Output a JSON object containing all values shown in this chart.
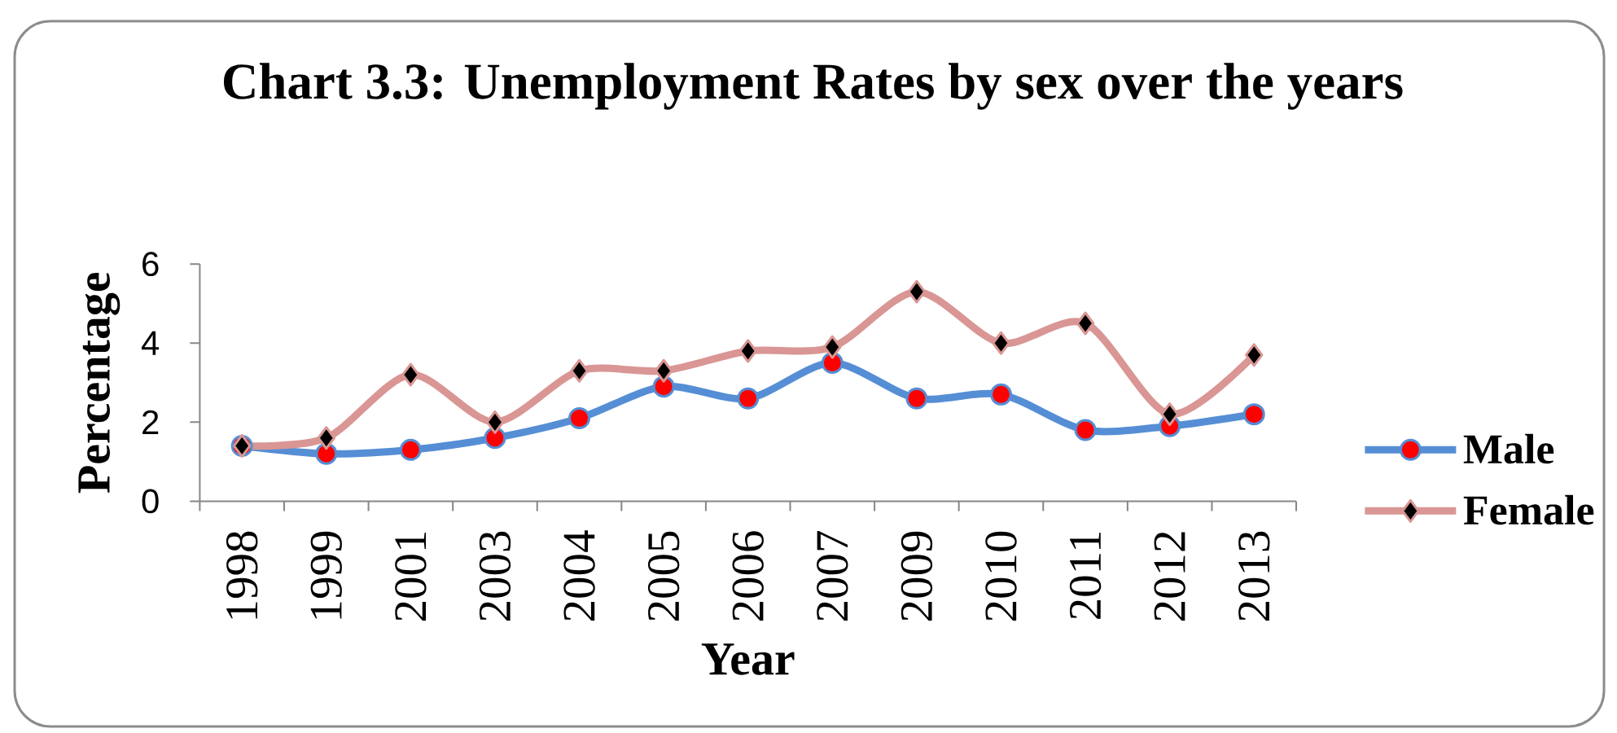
{
  "chart_data": {
    "type": "line",
    "title": "Chart 3.3: Unemployment Rates by sex over the years",
    "xlabel": "Year",
    "ylabel": "Percentage",
    "categories": [
      "1998",
      "1999",
      "2001",
      "2003",
      "2004",
      "2005",
      "2006",
      "2007",
      "2009",
      "2010",
      "2011",
      "2012",
      "2013"
    ],
    "series": [
      {
        "name": "Male",
        "color": "#558ed5",
        "marker": "circle",
        "values": [
          1.4,
          1.2,
          1.3,
          1.6,
          2.1,
          2.9,
          2.6,
          3.5,
          2.6,
          2.7,
          1.8,
          1.9,
          2.2
        ]
      },
      {
        "name": "Female",
        "color": "#d99694",
        "marker": "diamond",
        "values": [
          1.4,
          1.6,
          3.2,
          2.0,
          3.3,
          3.3,
          3.8,
          3.9,
          5.3,
          4.0,
          4.5,
          2.2,
          3.7
        ]
      }
    ],
    "ylim": [
      0,
      6
    ],
    "yticks": [
      0,
      2,
      4,
      6
    ],
    "legend": "right",
    "line_style": "solid"
  }
}
